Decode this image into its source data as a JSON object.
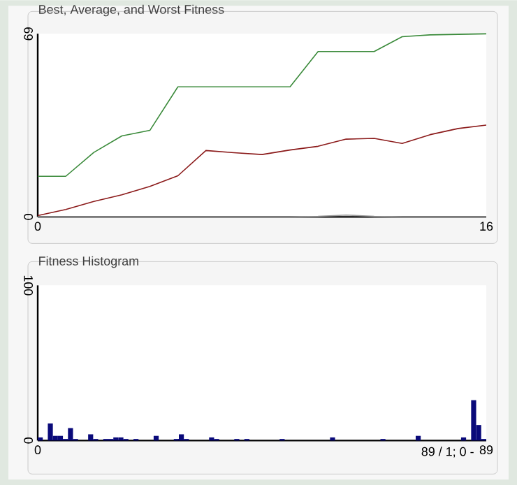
{
  "chart_data": [
    {
      "type": "line",
      "title": "Best, Average, and Worst Fitness",
      "x": [
        0,
        1,
        2,
        3,
        4,
        5,
        6,
        7,
        8,
        9,
        10,
        11,
        12,
        13,
        14,
        15,
        16
      ],
      "series": [
        {
          "color": "#3a8a3a",
          "values": [
            15.3,
            15.3,
            24.3,
            30.5,
            32.6,
            49,
            49,
            49,
            49,
            49,
            62.3,
            62.3,
            62.3,
            67.9,
            68.6,
            68.8,
            69
          ]
        },
        {
          "color": "#8b1a1a",
          "values": [
            0.5,
            2.8,
            5.8,
            8.3,
            11.5,
            15.5,
            25,
            24.2,
            23.5,
            25.2,
            26.6,
            29.3,
            29.6,
            27.7,
            31,
            33.3,
            34.6
          ]
        },
        {
          "color": "#9a9a9a",
          "values": [
            0,
            0,
            0,
            0,
            0,
            0,
            0,
            0,
            0,
            0,
            0.2,
            0.7,
            0.2,
            0,
            0,
            0,
            0
          ]
        }
      ],
      "xlim": [
        0,
        16
      ],
      "ylim": [
        0,
        69
      ],
      "xticks": [
        0,
        16
      ],
      "yticks": [
        0,
        69
      ],
      "grid": false
    },
    {
      "type": "histogram",
      "title": "Fitness Histogram",
      "color": "#0a0a7a",
      "bins": [
        0,
        1,
        2,
        3,
        4,
        5,
        6,
        7,
        8,
        9,
        10,
        11,
        12,
        13,
        14,
        15,
        16,
        17,
        18,
        19,
        20,
        21,
        22,
        23,
        24,
        25,
        26,
        27,
        28,
        29,
        30,
        31,
        32,
        33,
        34,
        35,
        36,
        37,
        38,
        39,
        40,
        41,
        42,
        43,
        44,
        45,
        46,
        47,
        48,
        49,
        50,
        51,
        52,
        53,
        54,
        55,
        56,
        57,
        58,
        59,
        60,
        61,
        62,
        63,
        64,
        65,
        66,
        67,
        68,
        69,
        70,
        71,
        72,
        73,
        74,
        75,
        76,
        77,
        78,
        79,
        80,
        81,
        82,
        83,
        84,
        85,
        86,
        87,
        88,
        89
      ],
      "values": [
        2,
        0,
        11,
        3,
        3,
        1,
        8,
        1,
        0,
        0,
        4,
        1,
        0,
        1,
        1,
        2,
        2,
        1,
        0,
        1,
        0,
        0,
        0,
        3,
        0,
        0,
        0,
        1,
        4,
        1,
        0,
        0,
        0,
        0,
        2,
        1,
        0,
        0,
        0,
        1,
        0,
        1,
        0,
        0,
        0,
        0,
        0,
        0,
        1,
        0,
        0,
        0,
        0,
        0,
        0,
        0,
        0,
        0,
        2,
        0,
        0,
        0,
        0,
        0,
        0,
        0,
        0,
        0,
        1,
        0,
        0,
        0,
        0,
        0,
        0,
        3,
        0,
        0,
        0,
        0,
        0,
        0,
        0,
        0,
        2,
        0,
        26,
        10,
        1
      ],
      "xlim": [
        0,
        89
      ],
      "ylim": [
        0,
        100
      ],
      "xticks": [
        0,
        89
      ],
      "yticks": [
        0,
        100
      ],
      "grid": false,
      "annotations": [
        "89 / 1;  0 -"
      ]
    }
  ]
}
